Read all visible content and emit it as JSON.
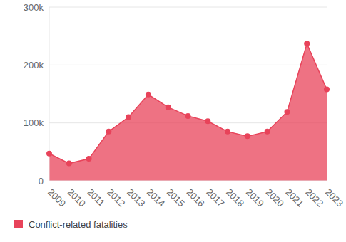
{
  "chart_data": {
    "type": "area",
    "categories": [
      "2009",
      "2010",
      "2011",
      "2012",
      "2013",
      "2014",
      "2015",
      "2016",
      "2017",
      "2018",
      "2019",
      "2020",
      "2021",
      "2022",
      "2023"
    ],
    "series": [
      {
        "name": "Conflict-related fatalities",
        "color": "#e8435a",
        "values": [
          47000,
          30000,
          38000,
          85000,
          110000,
          149000,
          127000,
          112000,
          103000,
          85000,
          77000,
          85000,
          119000,
          237000,
          158000
        ]
      }
    ],
    "ylim": [
      0,
      300000
    ],
    "yticks": [
      0,
      {
        "value": 100000,
        "label": "100k"
      },
      {
        "value": 200000,
        "label": "200k"
      },
      {
        "value": 300000,
        "label": "300k"
      }
    ],
    "grid": true,
    "legend": "lower left",
    "marker": "circle"
  }
}
